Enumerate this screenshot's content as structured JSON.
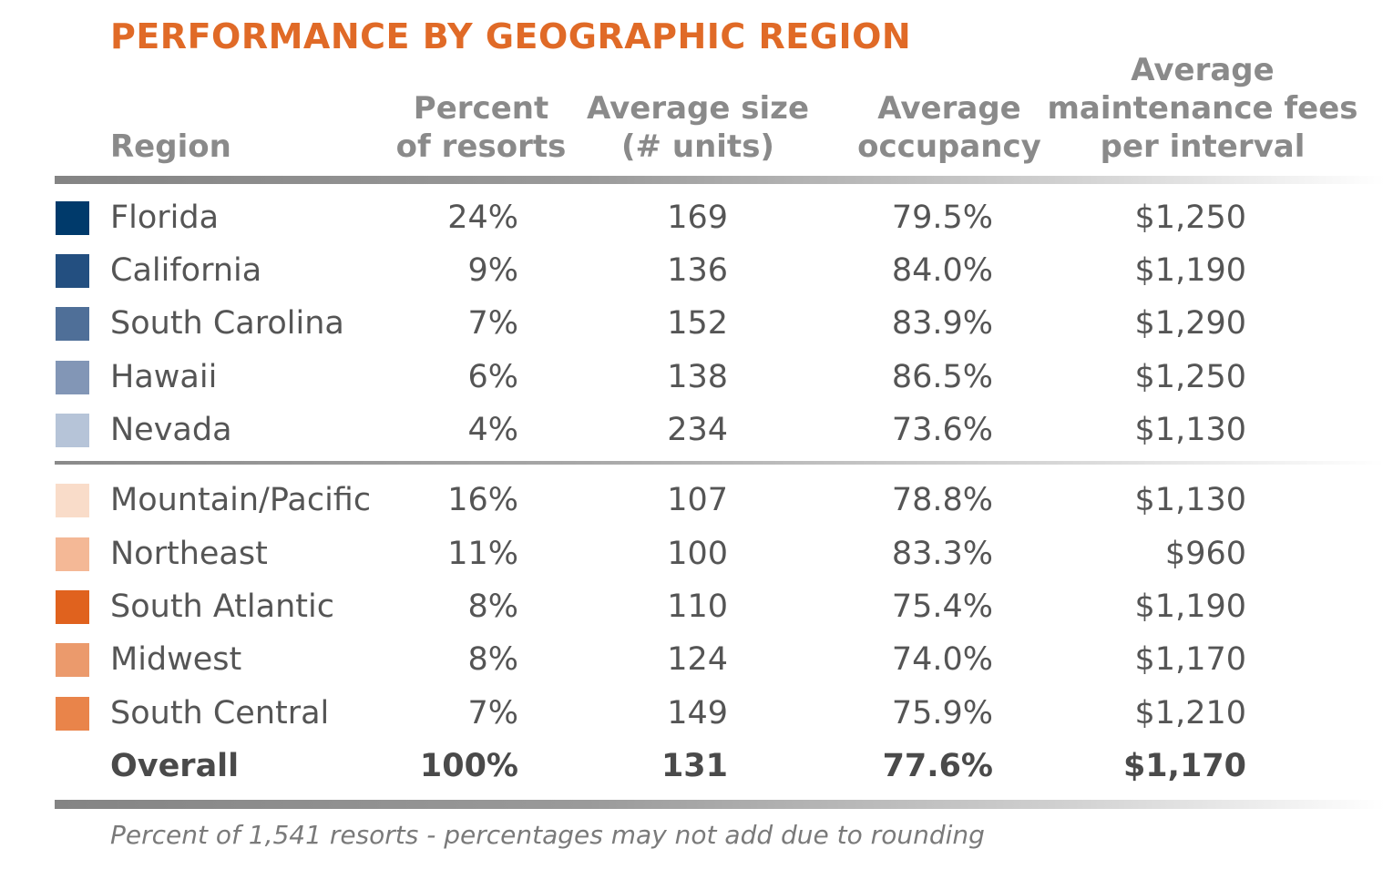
{
  "title": "PERFORMANCE BY GEOGRAPHIC REGION",
  "headers": {
    "region": "Region",
    "percent": [
      "Percent",
      "of resorts"
    ],
    "size": [
      "Average size",
      "(# units)"
    ],
    "occupancy": [
      "Average",
      "occupancy"
    ],
    "fees": [
      "Average",
      "maintenance fees",
      "per interval"
    ]
  },
  "chart_data": {
    "type": "table",
    "title": "PERFORMANCE BY GEOGRAPHIC REGION",
    "columns": [
      "Region",
      "Percent of resorts",
      "Average size (# units)",
      "Average occupancy",
      "Average maintenance fees per interval"
    ],
    "rows": [
      {
        "region": "Florida",
        "percent": "24%",
        "size": "169",
        "occupancy": "79.5%",
        "fee": "$1,250",
        "color": "#003a6b"
      },
      {
        "region": "California",
        "percent": "9%",
        "size": "136",
        "occupancy": "84.0%",
        "fee": "$1,190",
        "color": "#234f80"
      },
      {
        "region": "South Carolina",
        "percent": "7%",
        "size": "152",
        "occupancy": "83.9%",
        "fee": "$1,290",
        "color": "#4f6f98"
      },
      {
        "region": "Hawaii",
        "percent": "6%",
        "size": "138",
        "occupancy": "86.5%",
        "fee": "$1,250",
        "color": "#8296b6"
      },
      {
        "region": "Nevada",
        "percent": "4%",
        "size": "234",
        "occupancy": "73.6%",
        "fee": "$1,130",
        "color": "#b6c4d8"
      },
      {
        "region": "Mountain/Pacific",
        "percent": "16%",
        "size": "107",
        "occupancy": "78.8%",
        "fee": "$1,130",
        "color": "#f9dcc9"
      },
      {
        "region": "Northeast",
        "percent": "11%",
        "size": "100",
        "occupancy": "83.3%",
        "fee": "$960",
        "color": "#f4b896"
      },
      {
        "region": "South Atlantic",
        "percent": "8%",
        "size": "110",
        "occupancy": "75.4%",
        "fee": "$1,190",
        "color": "#e0621e"
      },
      {
        "region": "Midwest",
        "percent": "8%",
        "size": "124",
        "occupancy": "74.0%",
        "fee": "$1,170",
        "color": "#eb9a6c"
      },
      {
        "region": "South Central",
        "percent": "7%",
        "size": "149",
        "occupancy": "75.9%",
        "fee": "$1,210",
        "color": "#e9844a"
      }
    ],
    "overall": {
      "region": "Overall",
      "percent": "100%",
      "size": "131",
      "occupancy": "77.6%",
      "fee": "$1,170"
    },
    "note": "Percent of 1,541 resorts - percentages may not add due to rounding"
  }
}
